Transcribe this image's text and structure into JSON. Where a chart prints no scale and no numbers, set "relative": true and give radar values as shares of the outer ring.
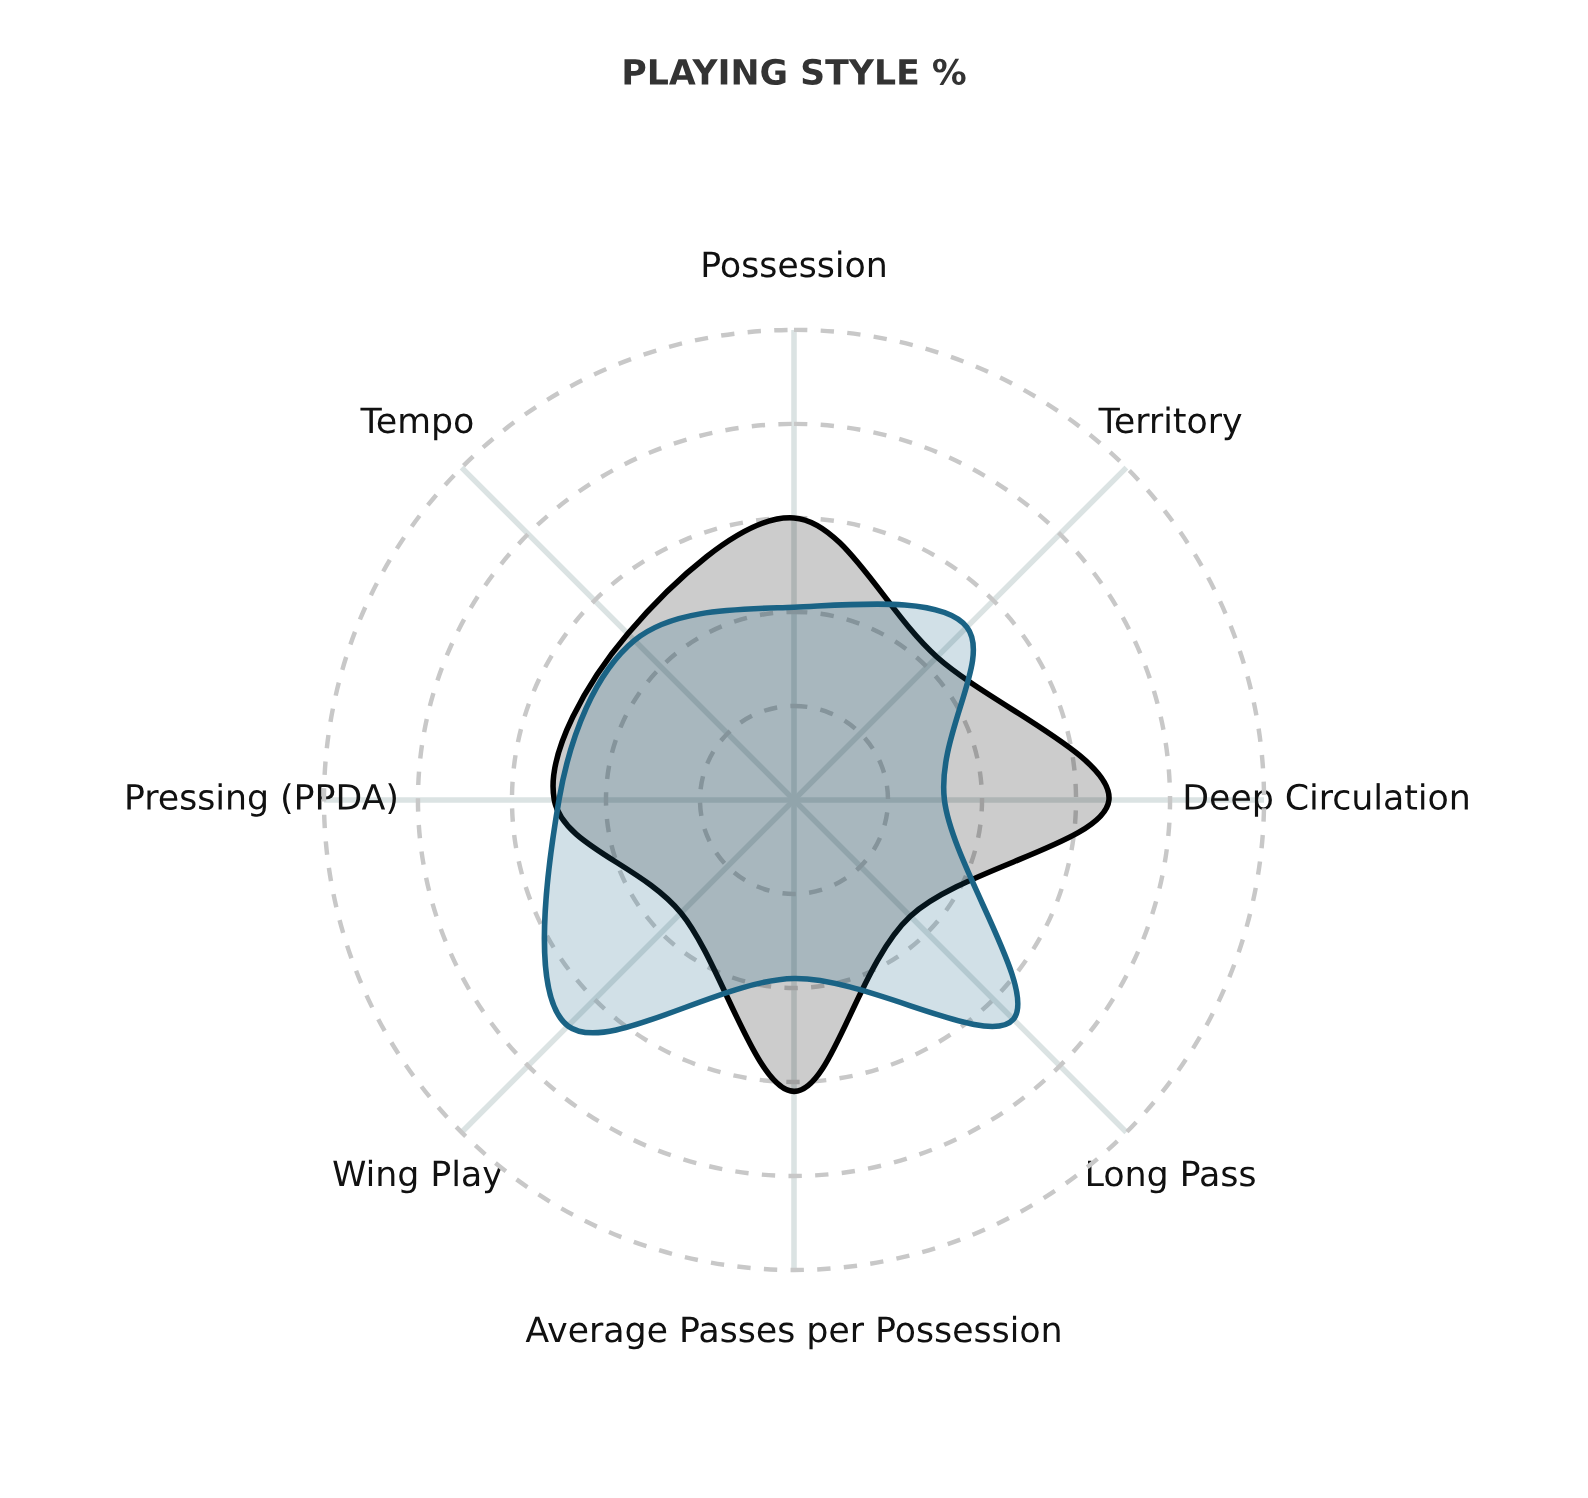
{
  "chart_data": {
    "type": "radar",
    "title": "PLAYING STYLE %",
    "relative": true,
    "grid": true,
    "categories": [
      "Possession",
      "Territory",
      "Deep Circulation",
      "Long Pass",
      "Average Passes per Possession",
      "Wing Play",
      "Pressing (PPDA)",
      "Tempo"
    ],
    "series": [
      {
        "color": "#000000",
        "values": [
          0.6,
          0.43,
          0.67,
          0.35,
          0.62,
          0.34,
          0.51,
          0.5
        ]
      },
      {
        "color": "#1a6385",
        "values": [
          0.41,
          0.52,
          0.32,
          0.66,
          0.38,
          0.68,
          0.5,
          0.48
        ]
      }
    ]
  }
}
